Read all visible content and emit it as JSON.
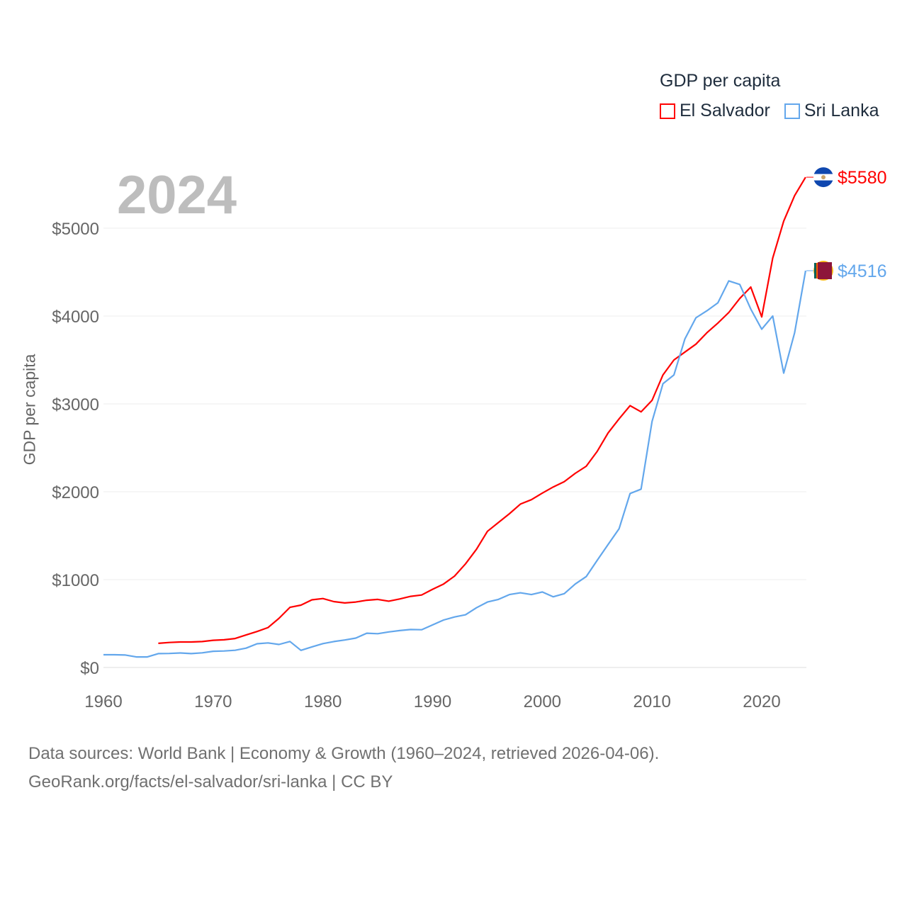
{
  "chart_data": {
    "type": "line",
    "title": "GDP per capita",
    "year_label": "2024",
    "xlabel": "",
    "ylabel": "GDP per capita",
    "xlim": [
      1960,
      2024
    ],
    "ylim": [
      0,
      5600
    ],
    "x_ticks": [
      "1960",
      "1970",
      "1980",
      "1990",
      "2000",
      "2010",
      "2020"
    ],
    "y_ticks": [
      {
        "v": 0,
        "label": "$0"
      },
      {
        "v": 1000,
        "label": "$1000"
      },
      {
        "v": 2000,
        "label": "$2000"
      },
      {
        "v": 3000,
        "label": "$3000"
      },
      {
        "v": 4000,
        "label": "$4000"
      },
      {
        "v": 5000,
        "label": "$5000"
      }
    ],
    "legend_position": "top-right",
    "series": [
      {
        "name": "El Salvador",
        "color": "#ff0000",
        "end_label": "$5580",
        "start_year": 1965,
        "values": [
          275,
          285,
          290,
          290,
          295,
          310,
          315,
          330,
          370,
          410,
          455,
          560,
          685,
          710,
          770,
          785,
          750,
          735,
          745,
          765,
          775,
          755,
          780,
          810,
          825,
          890,
          950,
          1040,
          1180,
          1345,
          1550,
          1650,
          1750,
          1860,
          1910,
          1985,
          2055,
          2115,
          2210,
          2290,
          2460,
          2670,
          2830,
          2980,
          2910,
          3040,
          3330,
          3500,
          3590,
          3680,
          3810,
          3920,
          4040,
          4200,
          4330,
          3990,
          4660,
          5080,
          5370,
          5580
        ]
      },
      {
        "name": "Sri Lanka",
        "color": "#63a7ec",
        "end_label": "$4516",
        "start_year": 1960,
        "values": [
          145,
          145,
          142,
          120,
          120,
          158,
          160,
          165,
          158,
          167,
          185,
          188,
          196,
          220,
          270,
          280,
          262,
          296,
          195,
          235,
          272,
          295,
          313,
          335,
          390,
          385,
          405,
          420,
          432,
          430,
          485,
          540,
          575,
          600,
          680,
          745,
          775,
          830,
          850,
          830,
          860,
          805,
          840,
          950,
          1035,
          1220,
          1400,
          1580,
          1980,
          2030,
          2800,
          3230,
          3330,
          3740,
          3980,
          4060,
          4150,
          4400,
          4360,
          4080,
          3850,
          4000,
          3350,
          3810,
          4516
        ]
      }
    ]
  },
  "footer": {
    "line1": "Data sources: World Bank | Economy & Growth (1960–2024, retrieved 2026-04-06).",
    "line2": "GeoRank.org/facts/el-salvador/sri-lanka | CC BY"
  }
}
